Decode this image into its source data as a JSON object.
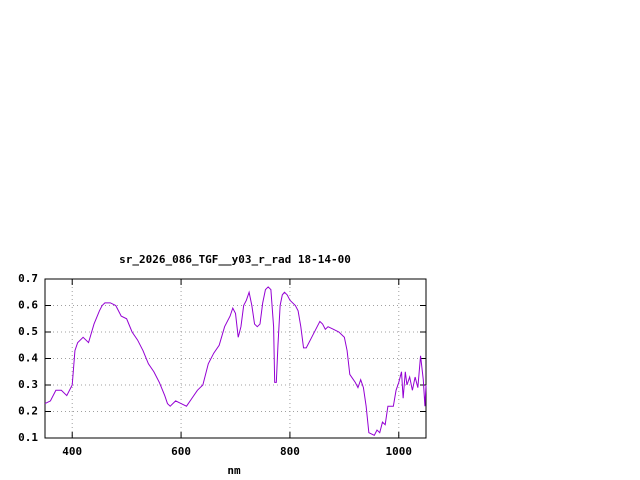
{
  "chart_data": {
    "type": "line",
    "title": "sr_2026_086_TGF__y03_r_rad 18-14-00",
    "x_label": "nm",
    "x": [
      350,
      360,
      370,
      380,
      390,
      400,
      405,
      410,
      420,
      430,
      440,
      450,
      455,
      460,
      470,
      480,
      490,
      500,
      510,
      520,
      530,
      540,
      550,
      560,
      570,
      575,
      580,
      590,
      600,
      610,
      620,
      630,
      640,
      650,
      660,
      670,
      680,
      690,
      695,
      700,
      705,
      710,
      715,
      720,
      725,
      730,
      735,
      740,
      745,
      750,
      755,
      760,
      765,
      770,
      772,
      775,
      778,
      782,
      786,
      790,
      795,
      800,
      810,
      815,
      820,
      825,
      830,
      840,
      850,
      855,
      860,
      865,
      870,
      880,
      890,
      900,
      905,
      910,
      920,
      925,
      930,
      935,
      940,
      945,
      955,
      960,
      965,
      970,
      975,
      980,
      990,
      995,
      1000,
      1005,
      1008,
      1012,
      1015,
      1020,
      1025,
      1030,
      1035,
      1040,
      1045,
      1048,
      1050
    ],
    "values": [
      0.23,
      0.24,
      0.28,
      0.28,
      0.26,
      0.3,
      0.43,
      0.46,
      0.48,
      0.46,
      0.53,
      0.58,
      0.6,
      0.61,
      0.61,
      0.6,
      0.56,
      0.55,
      0.5,
      0.47,
      0.43,
      0.38,
      0.35,
      0.31,
      0.26,
      0.23,
      0.22,
      0.24,
      0.23,
      0.22,
      0.25,
      0.28,
      0.3,
      0.38,
      0.42,
      0.45,
      0.52,
      0.56,
      0.59,
      0.57,
      0.48,
      0.52,
      0.6,
      0.62,
      0.65,
      0.6,
      0.53,
      0.52,
      0.53,
      0.61,
      0.66,
      0.67,
      0.66,
      0.52,
      0.31,
      0.31,
      0.45,
      0.6,
      0.64,
      0.65,
      0.64,
      0.62,
      0.6,
      0.58,
      0.52,
      0.44,
      0.44,
      0.48,
      0.52,
      0.54,
      0.53,
      0.51,
      0.52,
      0.51,
      0.5,
      0.48,
      0.43,
      0.34,
      0.31,
      0.29,
      0.32,
      0.29,
      0.22,
      0.12,
      0.11,
      0.13,
      0.12,
      0.16,
      0.15,
      0.22,
      0.22,
      0.28,
      0.31,
      0.35,
      0.25,
      0.35,
      0.3,
      0.33,
      0.28,
      0.33,
      0.29,
      0.41,
      0.32,
      0.22,
      0.3
    ],
    "color": "#9400d3",
    "xlim": [
      350,
      1050
    ],
    "ylim": [
      0.1,
      0.7
    ],
    "xticks": [
      400,
      600,
      800,
      1000
    ],
    "yticks": [
      0.1,
      0.2,
      0.3,
      0.4,
      0.5,
      0.6,
      0.7
    ],
    "grid": true
  }
}
